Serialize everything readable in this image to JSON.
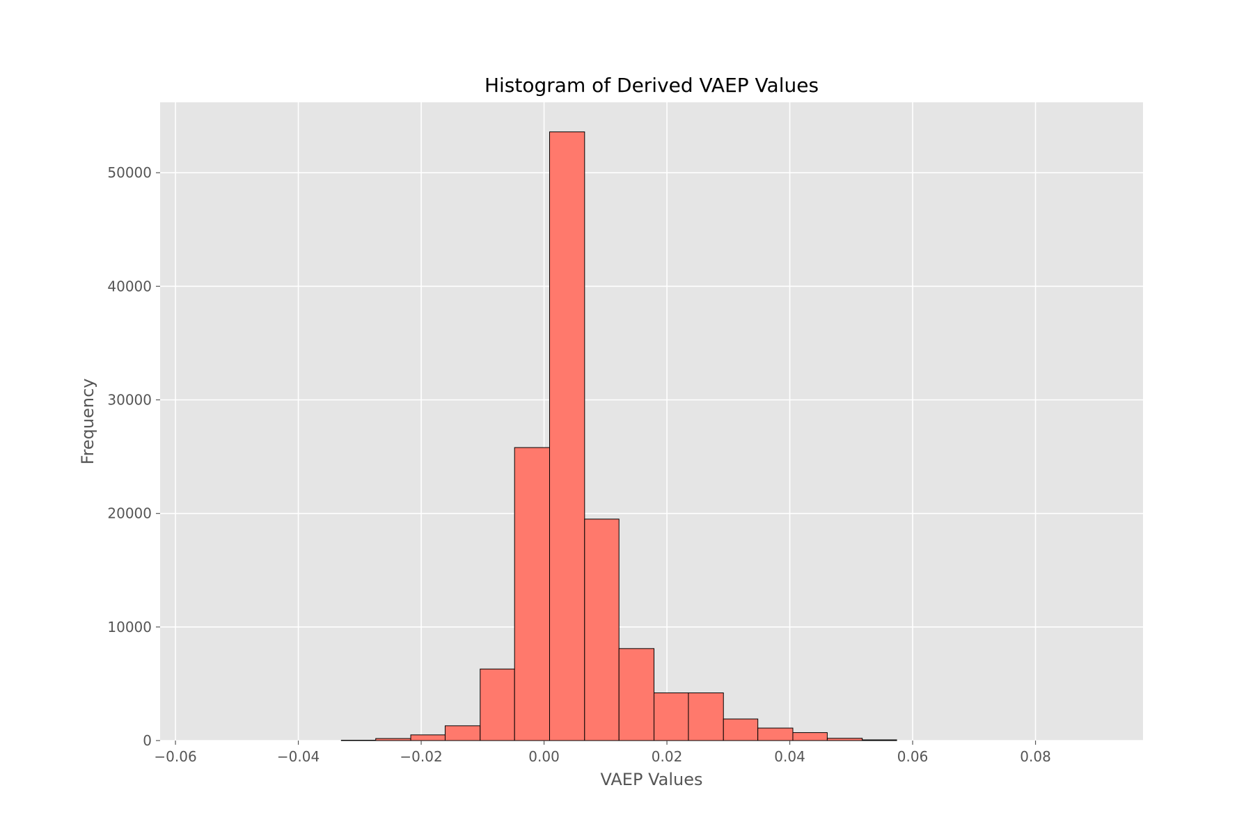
{
  "chart_data": {
    "type": "bar",
    "title": "Histogram of Derived VAEP Values",
    "xlabel": "VAEP Values",
    "ylabel": "Frequency",
    "xlim": [
      -0.0625,
      0.0975
    ],
    "ylim": [
      0,
      56200
    ],
    "xticks": [
      {
        "value": -0.06,
        "label": "−0.06"
      },
      {
        "value": -0.04,
        "label": "−0.04"
      },
      {
        "value": -0.02,
        "label": "−0.02"
      },
      {
        "value": 0.0,
        "label": "0.00"
      },
      {
        "value": 0.02,
        "label": "0.02"
      },
      {
        "value": 0.04,
        "label": "0.04"
      },
      {
        "value": 0.06,
        "label": "0.06"
      },
      {
        "value": 0.08,
        "label": "0.08"
      }
    ],
    "yticks": [
      {
        "value": 0,
        "label": "0"
      },
      {
        "value": 10000,
        "label": "10000"
      },
      {
        "value": 20000,
        "label": "20000"
      },
      {
        "value": 30000,
        "label": "30000"
      },
      {
        "value": 40000,
        "label": "40000"
      },
      {
        "value": 50000,
        "label": "50000"
      }
    ],
    "grid": true,
    "colors": {
      "bar_fill": "#ff796c",
      "bar_edge": "#000000",
      "plot_background": "#e5e5e5",
      "grid": "#ffffff",
      "tick_text": "#555555",
      "title_text": "#000000"
    },
    "bins": [
      {
        "x0": -0.0387,
        "x1": -0.033,
        "count": 0
      },
      {
        "x0": -0.033,
        "x1": -0.0274,
        "count": 30
      },
      {
        "x0": -0.0274,
        "x1": -0.0217,
        "count": 180
      },
      {
        "x0": -0.0217,
        "x1": -0.0161,
        "count": 500
      },
      {
        "x0": -0.0161,
        "x1": -0.0104,
        "count": 1300
      },
      {
        "x0": -0.0104,
        "x1": -0.0048,
        "count": 6300
      },
      {
        "x0": -0.0048,
        "x1": 0.0009,
        "count": 25800
      },
      {
        "x0": 0.0009,
        "x1": 0.0066,
        "count": 53600
      },
      {
        "x0": 0.0066,
        "x1": 0.0122,
        "count": 19500
      },
      {
        "x0": 0.0122,
        "x1": 0.0179,
        "count": 8100
      },
      {
        "x0": 0.0179,
        "x1": 0.0235,
        "count": 4200
      },
      {
        "x0": 0.0235,
        "x1": 0.0292,
        "count": 4200
      },
      {
        "x0": 0.0292,
        "x1": 0.0348,
        "count": 1900
      },
      {
        "x0": 0.0348,
        "x1": 0.0405,
        "count": 1100
      },
      {
        "x0": 0.0405,
        "x1": 0.0461,
        "count": 700
      },
      {
        "x0": 0.0461,
        "x1": 0.0518,
        "count": 200
      },
      {
        "x0": 0.0518,
        "x1": 0.0574,
        "count": 60
      }
    ]
  }
}
